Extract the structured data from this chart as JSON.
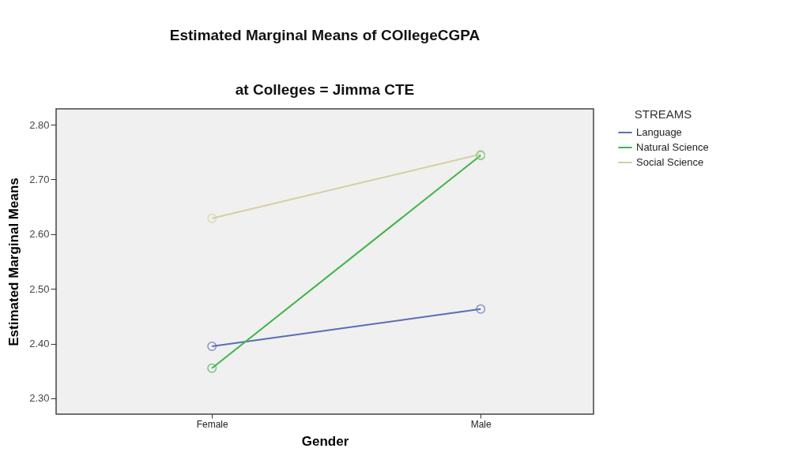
{
  "chart_data": {
    "type": "line",
    "title": "Estimated Marginal Means of COllegeCGPA",
    "subtitle": "at Colleges = Jimma CTE",
    "xlabel": "Gender",
    "ylabel": "Estimated Marginal Means",
    "legend_title": "STREAMS",
    "categories": [
      "Female",
      "Male"
    ],
    "series": [
      {
        "name": "Language",
        "color": "#5b6db5",
        "values": [
          2.395,
          2.463
        ]
      },
      {
        "name": "Natural Science",
        "color": "#3fb44b",
        "values": [
          2.355,
          2.744
        ]
      },
      {
        "name": "Social Science",
        "color": "#d3d0a0",
        "values": [
          2.629,
          2.746
        ]
      }
    ],
    "ylim": [
      2.271,
      2.829
    ],
    "yticks": [
      {
        "value": 2.3,
        "label": "2.30"
      },
      {
        "value": 2.4,
        "label": "2.40"
      },
      {
        "value": 2.5,
        "label": "2.50"
      },
      {
        "value": 2.6,
        "label": "2.60"
      },
      {
        "value": 2.7,
        "label": "2.70"
      },
      {
        "value": 2.8,
        "label": "2.80"
      }
    ],
    "grid": false,
    "legend": "top right",
    "marker": "circle",
    "line_style": "solid"
  }
}
